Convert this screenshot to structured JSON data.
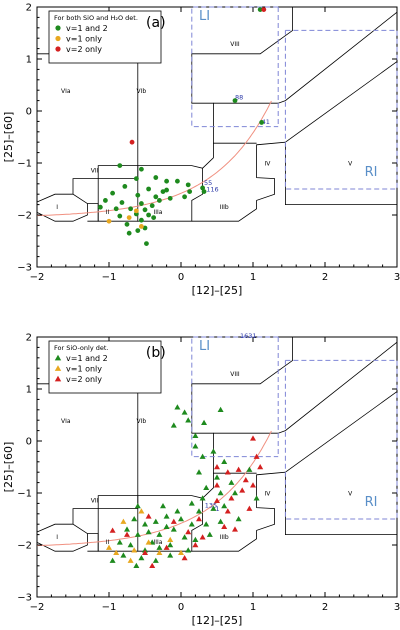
{
  "chart_data": [
    {
      "type": "scatter",
      "panel_label": "(a)",
      "xlabel": "[12]–[25]",
      "ylabel": "[25]–[60]",
      "xlim": [
        -2,
        3
      ],
      "ylim": [
        -3,
        2
      ],
      "xticks": [
        "−2",
        "−1",
        "0",
        "1",
        "2",
        "3"
      ],
      "yticks": [
        "−3",
        "−2",
        "−1",
        "0",
        "1",
        "2"
      ],
      "legend": {
        "title": "For both SiO and H₂O det.",
        "position": "top-left",
        "marker": "circle",
        "entries": [
          {
            "label": "v=1 and 2",
            "color": "#1e8a1e"
          },
          {
            "label": "v=1 only",
            "color": "#e8a820"
          },
          {
            "label": "v=2 only",
            "color": "#d42020"
          }
        ]
      },
      "region_labels": [
        "I",
        "II",
        "IIIa",
        "IIIb",
        "IV",
        "V",
        "VIa",
        "VIb",
        "VII",
        "VIII"
      ],
      "reference_boxes": [
        "LI",
        "RI"
      ],
      "annotations": [
        {
          "text": "88",
          "x": 0.75,
          "y": 0.22
        },
        {
          "text": "41",
          "x": 1.12,
          "y": -0.25
        },
        {
          "text": "55",
          "x": 0.32,
          "y": -1.42
        },
        {
          "text": "116",
          "x": 0.35,
          "y": -1.55
        }
      ],
      "series": [
        {
          "name": "v=1 and 2",
          "color": "#1e8a1e",
          "points": [
            [
              -0.72,
              1.06
            ],
            [
              1.1,
              1.95
            ],
            [
              0.75,
              0.2
            ],
            [
              1.12,
              -0.22
            ],
            [
              -0.85,
              -1.05
            ],
            [
              -0.55,
              -1.12
            ],
            [
              -0.35,
              -1.28
            ],
            [
              -0.62,
              -1.3
            ],
            [
              -0.2,
              -1.35
            ],
            [
              -0.05,
              -1.35
            ],
            [
              0.1,
              -1.42
            ],
            [
              0.3,
              -1.48
            ],
            [
              -0.78,
              -1.45
            ],
            [
              -0.45,
              -1.5
            ],
            [
              -0.25,
              -1.55
            ],
            [
              0.12,
              -1.55
            ],
            [
              -0.95,
              -1.58
            ],
            [
              -0.6,
              -1.62
            ],
            [
              -0.35,
              -1.65
            ],
            [
              -0.15,
              -1.68
            ],
            [
              0.05,
              -1.65
            ],
            [
              -1.05,
              -1.72
            ],
            [
              -0.82,
              -1.76
            ],
            [
              -0.55,
              -1.78
            ],
            [
              -0.4,
              -1.82
            ],
            [
              -0.3,
              -1.72
            ],
            [
              -1.12,
              -1.85
            ],
            [
              -0.9,
              -1.88
            ],
            [
              -0.7,
              -1.88
            ],
            [
              -0.5,
              -1.9
            ],
            [
              -0.45,
              -2.0
            ],
            [
              -0.62,
              -1.98
            ],
            [
              -0.85,
              -2.02
            ],
            [
              -0.55,
              -2.1
            ],
            [
              -0.38,
              -2.05
            ],
            [
              -0.75,
              -2.18
            ],
            [
              -0.5,
              -2.25
            ],
            [
              -0.6,
              -2.3
            ],
            [
              -0.72,
              -2.35
            ],
            [
              -0.48,
              -2.55
            ],
            [
              0.32,
              -1.55
            ],
            [
              -0.2,
              -1.52
            ]
          ]
        },
        {
          "name": "v=1 only",
          "color": "#e8a820",
          "points": [
            [
              -1.0,
              -2.12
            ],
            [
              -0.62,
              -1.92
            ],
            [
              -0.72,
              -2.05
            ],
            [
              -0.55,
              -2.22
            ]
          ]
        },
        {
          "name": "v=2 only",
          "color": "#d42020",
          "points": [
            [
              1.15,
              1.95
            ],
            [
              -0.68,
              -0.6
            ]
          ]
        }
      ]
    },
    {
      "type": "scatter",
      "panel_label": "(b)",
      "xlabel": "[12]–[25]",
      "ylabel": "[25]–[60]",
      "xlim": [
        -2,
        3
      ],
      "ylim": [
        -3,
        2
      ],
      "xticks": [
        "−2",
        "−1",
        "0",
        "1",
        "2",
        "3"
      ],
      "yticks": [
        "−3",
        "−2",
        "−1",
        "0",
        "1",
        "2"
      ],
      "legend": {
        "title": "For SiO-only det.",
        "position": "top-left",
        "marker": "triangle",
        "entries": [
          {
            "label": "v=1 and 2",
            "color": "#1e8a1e"
          },
          {
            "label": "v=1 only",
            "color": "#e8a820"
          },
          {
            "label": "v=2 only",
            "color": "#d42020"
          }
        ]
      },
      "region_labels": [
        "I",
        "II",
        "IIIa",
        "IIIb",
        "IV",
        "V",
        "VIa",
        "VIb",
        "VII",
        "VIII"
      ],
      "reference_boxes": [
        "LI",
        "RI"
      ],
      "annotations": [
        {
          "text": "1631",
          "x": 0.82,
          "y": 1.98
        },
        {
          "text": "135",
          "x": 0.33,
          "y": -1.28
        },
        {
          "text": "1",
          "x": 0.48,
          "y": -1.35
        }
      ],
      "series": [
        {
          "name": "v=1 and 2",
          "color": "#1e8a1e",
          "points": [
            [
              -0.05,
              0.65
            ],
            [
              0.05,
              0.55
            ],
            [
              -0.1,
              0.3
            ],
            [
              0.1,
              0.4
            ],
            [
              0.2,
              0.1
            ],
            [
              0.32,
              0.35
            ],
            [
              0.55,
              0.6
            ],
            [
              0.2,
              -0.1
            ],
            [
              0.3,
              -0.3
            ],
            [
              0.45,
              -0.2
            ],
            [
              0.6,
              -0.4
            ],
            [
              0.5,
              -0.7
            ],
            [
              0.35,
              -0.9
            ],
            [
              0.7,
              -0.8
            ],
            [
              0.55,
              -1.0
            ],
            [
              0.3,
              -1.1
            ],
            [
              0.45,
              -1.3
            ],
            [
              0.6,
              -1.25
            ],
            [
              0.75,
              -1.0
            ],
            [
              0.8,
              -1.5
            ],
            [
              0.55,
              -1.55
            ],
            [
              0.35,
              -1.6
            ],
            [
              0.4,
              -1.8
            ],
            [
              0.15,
              -1.2
            ],
            [
              -0.05,
              -1.35
            ],
            [
              -0.2,
              -1.45
            ],
            [
              -0.35,
              -1.55
            ],
            [
              -0.5,
              -1.6
            ],
            [
              -0.65,
              -1.5
            ],
            [
              -0.75,
              -1.7
            ],
            [
              -0.6,
              -1.8
            ],
            [
              -0.45,
              -1.75
            ],
            [
              -0.3,
              -1.8
            ],
            [
              -0.1,
              -1.7
            ],
            [
              0.05,
              -1.85
            ],
            [
              0.2,
              -1.9
            ],
            [
              -0.15,
              -2.0
            ],
            [
              -0.3,
              -2.05
            ],
            [
              -0.5,
              -2.1
            ],
            [
              -0.7,
              -2.0
            ],
            [
              -0.85,
              -1.95
            ],
            [
              -0.4,
              -1.95
            ],
            [
              -0.2,
              -1.65
            ],
            [
              0.0,
              -1.5
            ],
            [
              -0.55,
              -2.25
            ],
            [
              -0.35,
              -2.3
            ],
            [
              -0.15,
              -2.2
            ],
            [
              0.1,
              -2.1
            ],
            [
              -0.8,
              -2.2
            ],
            [
              -0.95,
              -2.3
            ],
            [
              -0.62,
              -2.4
            ],
            [
              0.25,
              -1.35
            ],
            [
              0.15,
              -1.6
            ],
            [
              -0.25,
              -1.25
            ],
            [
              -0.6,
              -1.25
            ],
            [
              0.95,
              -0.55
            ],
            [
              1.05,
              -1.1
            ],
            [
              0.25,
              -0.6
            ]
          ]
        },
        {
          "name": "v=1 only",
          "color": "#e8a820",
          "points": [
            [
              -0.55,
              -1.35
            ],
            [
              -0.8,
              -1.55
            ],
            [
              -0.45,
              -1.95
            ],
            [
              -0.65,
              -2.1
            ],
            [
              -0.9,
              -2.15
            ],
            [
              -0.3,
              -2.15
            ],
            [
              -1.0,
              -2.05
            ],
            [
              -0.7,
              -2.3
            ],
            [
              -0.15,
              -1.9
            ],
            [
              0.0,
              -2.15
            ]
          ]
        },
        {
          "name": "v=2 only",
          "color": "#d42020",
          "points": [
            [
              0.5,
              -0.5
            ],
            [
              0.65,
              -0.6
            ],
            [
              0.8,
              -0.55
            ],
            [
              0.9,
              -0.75
            ],
            [
              0.7,
              -1.1
            ],
            [
              0.85,
              -0.95
            ],
            [
              1.0,
              -0.85
            ],
            [
              1.1,
              -0.5
            ],
            [
              1.05,
              -0.3
            ],
            [
              0.65,
              -1.35
            ],
            [
              0.5,
              -1.15
            ],
            [
              0.95,
              -1.3
            ],
            [
              0.75,
              -1.7
            ],
            [
              0.25,
              -1.5
            ],
            [
              0.6,
              -1.65
            ],
            [
              0.2,
              -2.0
            ],
            [
              -0.1,
              -1.55
            ],
            [
              0.1,
              -1.75
            ],
            [
              -0.45,
              -1.45
            ],
            [
              -0.2,
              -2.05
            ],
            [
              0.05,
              -2.25
            ],
            [
              -0.5,
              -2.15
            ],
            [
              -0.75,
              -1.8
            ],
            [
              -0.95,
              -1.72
            ],
            [
              -0.4,
              -2.4
            ],
            [
              0.3,
              -1.85
            ],
            [
              1.0,
              0.05
            ],
            [
              0.5,
              -0.85
            ]
          ]
        }
      ]
    }
  ]
}
